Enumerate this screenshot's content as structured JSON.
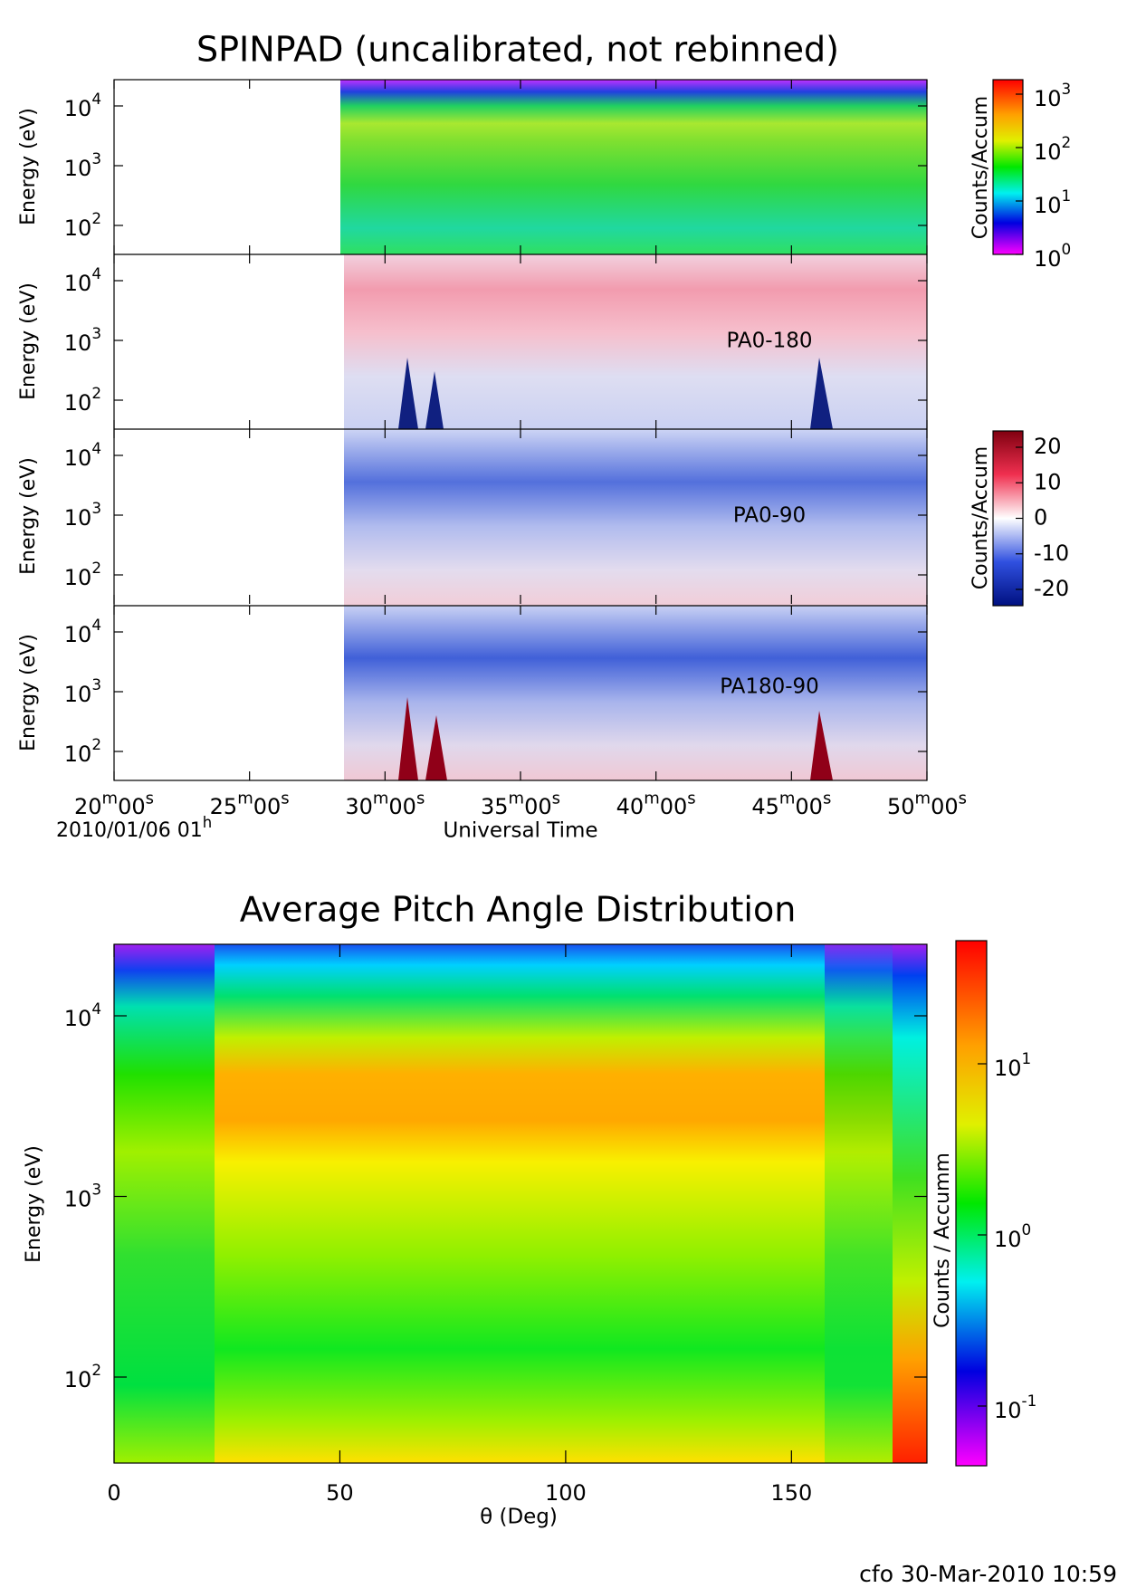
{
  "top": {
    "title": "SPINPAD (uncalibrated, not rebinned)",
    "y_label": "Energy (eV)",
    "y_ticks": [
      {
        "base": "10",
        "exp": "4"
      },
      {
        "base": "10",
        "exp": "3"
      },
      {
        "base": "10",
        "exp": "2"
      }
    ],
    "panel_labels": [
      "PA0-180",
      "PA0-90",
      "PA180-90"
    ],
    "x_ticks": [
      "20m00s",
      "25m00s",
      "30m00s",
      "35m00s",
      "40m00s",
      "45m00s",
      "50m00s"
    ],
    "date": "2010/01/06 01h",
    "x_label": "Universal Time",
    "colorbar_counts": {
      "label": "Counts/Accum",
      "ticks": [
        {
          "base": "10",
          "exp": "3"
        },
        {
          "base": "10",
          "exp": "2"
        },
        {
          "base": "10",
          "exp": "1"
        },
        {
          "base": "10",
          "exp": "0"
        }
      ]
    },
    "colorbar_diff": {
      "label": "Counts/Accum",
      "ticks": [
        20,
        10,
        0,
        -10,
        -20
      ]
    }
  },
  "bottom": {
    "title": "Average Pitch Angle Distribution",
    "y_label": "Energy (eV)",
    "y_ticks": [
      {
        "base": "10",
        "exp": "4"
      },
      {
        "base": "10",
        "exp": "3"
      },
      {
        "base": "10",
        "exp": "2"
      }
    ],
    "x_label": "θ (Deg)",
    "xlim": [
      0,
      180
    ],
    "x_ticks": [
      0,
      50,
      100,
      150
    ],
    "colorbar": {
      "label": "Counts / Accumm",
      "ticks": [
        {
          "base": "10",
          "exp": "1"
        },
        {
          "base": "10",
          "exp": "0"
        },
        {
          "base": "10",
          "exp": "-1"
        }
      ]
    }
  },
  "footer": "cfo 30-Mar-2010 10:59"
}
